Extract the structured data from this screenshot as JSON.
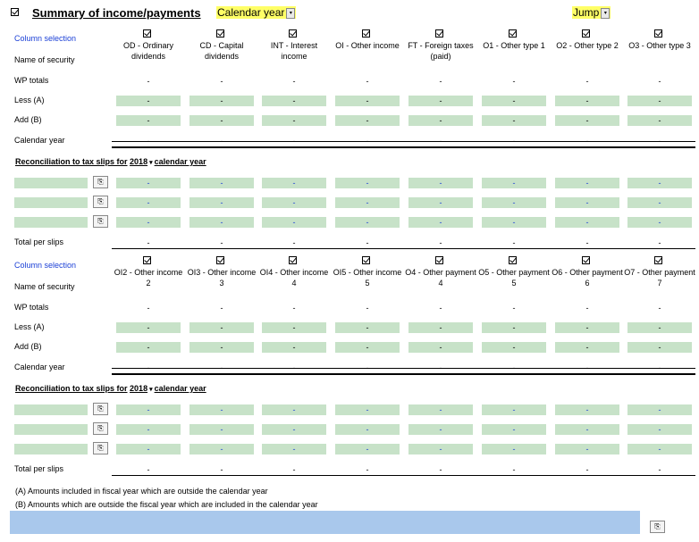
{
  "header": {
    "title": "Summary of income/payments",
    "period_select": "Calendar year",
    "jump": "Jump"
  },
  "row_labels": {
    "column_selection": "Column selection",
    "name_of_security": "Name of security",
    "wp_totals": "WP totals",
    "less": "Less (A)",
    "add": "Add (B)",
    "calendar_year": "Calendar year",
    "total_per_slips": "Total per slips"
  },
  "table1": {
    "columns": [
      "OD - Ordinary dividends",
      "CD - Capital dividends",
      "INT - Interest income",
      "OI - Other income",
      "FT - Foreign taxes (paid)",
      "O1 - Other type 1",
      "O2 - Other type 2",
      "O3 - Other type 3"
    ]
  },
  "table2": {
    "columns": [
      "OI2 - Other income 2",
      "OI3 - Other income 3",
      "OI4 - Other income 4",
      "OI5 - Other income 5",
      "O4 - Other payment 4",
      "O5 - Other payment 5",
      "O6 - Other payment 6",
      "O7 - Other payment 7"
    ]
  },
  "reconciliation": {
    "prefix": "Reconciliation to tax slips for",
    "year": "2018",
    "suffix": "calendar year"
  },
  "dash": "-",
  "notes": {
    "a": "(A) Amounts included in fiscal year which are outside the calendar year",
    "b": "(B) Amounts which are outside the fiscal year which are included in the calendar year"
  },
  "colors": {
    "highlight": "#ffff66",
    "input_green": "#c7e2c8",
    "footer_blue": "#a9c8ec",
    "link_blue": "#1a3fd6"
  }
}
